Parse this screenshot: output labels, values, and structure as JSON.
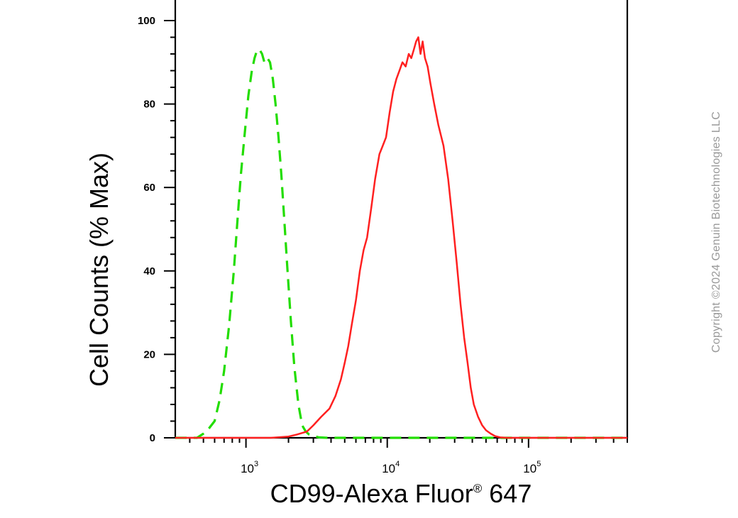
{
  "chart_data": {
    "type": "line",
    "xscale": "log",
    "xlim": [
      316,
      500000
    ],
    "ylim": [
      0,
      100
    ],
    "ylabel": "Cell Counts (% Max)",
    "xlabel_main": "CD99-Alexa Fluor",
    "xlabel_sup": "®",
    "xlabel_suffix": " 647",
    "y_ticks": [
      "0",
      "20",
      "40",
      "60",
      "80",
      "100"
    ],
    "x_ticks": [
      {
        "base": "10",
        "exp": "3"
      },
      {
        "base": "10",
        "exp": "4"
      },
      {
        "base": "10",
        "exp": "5"
      }
    ],
    "grid": false,
    "legend": "none",
    "series": [
      {
        "style": "dashed",
        "color": "#22dd00",
        "x": [
          316,
          400,
          450,
          500,
          540,
          600,
          650,
          700,
          760,
          820,
          870,
          920,
          980,
          1040,
          1100,
          1150,
          1200,
          1250,
          1300,
          1350,
          1420,
          1480,
          1550,
          1620,
          1700,
          1780,
          1870,
          1970,
          2080,
          2200,
          2350,
          2500,
          2650,
          2800,
          3000,
          3300,
          3800,
          5000,
          10000,
          50000,
          500000
        ],
        "y": [
          0,
          0,
          0,
          1,
          2,
          4,
          9,
          16,
          27,
          40,
          52,
          63,
          73,
          82,
          88,
          91,
          93,
          93,
          92,
          90,
          91,
          90,
          86,
          80,
          72,
          63,
          52,
          40,
          28,
          17,
          8,
          3,
          1.5,
          0.8,
          0.4,
          0.1,
          0,
          0,
          0,
          0,
          0
        ]
      },
      {
        "style": "solid",
        "color": "#ff2020",
        "x": [
          316,
          1500,
          2000,
          2300,
          2700,
          3000,
          3400,
          3900,
          4300,
          4700,
          5000,
          5300,
          5600,
          6000,
          6400,
          6800,
          7200,
          7700,
          8200,
          8800,
          9300,
          9800,
          10400,
          11000,
          11600,
          12200,
          12800,
          13500,
          14200,
          14800,
          15400,
          16000,
          16600,
          17200,
          17800,
          18500,
          19300,
          20200,
          21500,
          23000,
          25000,
          27000,
          29000,
          31000,
          33000,
          35000,
          37000,
          39000,
          41000,
          44000,
          47000,
          50000,
          54000,
          58000,
          63000,
          70000,
          100000,
          500000
        ],
        "y": [
          0,
          0,
          0.3,
          0.8,
          1.5,
          3,
          5,
          7,
          10,
          14,
          18,
          22,
          27,
          33,
          40,
          45,
          48,
          55,
          62,
          68,
          70,
          72,
          78,
          83,
          86,
          88,
          90,
          89,
          92,
          91,
          93,
          95,
          96,
          92,
          95,
          91,
          89,
          85,
          80,
          75,
          70,
          62,
          52,
          42,
          32,
          24,
          18,
          12,
          8,
          5,
          3,
          1.8,
          1,
          0.4,
          0.1,
          0,
          0,
          0
        ]
      }
    ]
  },
  "copyright": "Copyright ©2024 Genuin Biotechnologies LLC"
}
